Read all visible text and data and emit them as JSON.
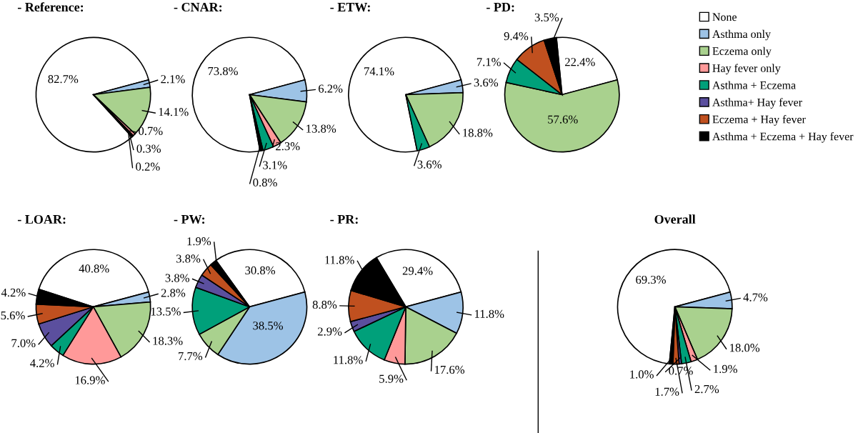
{
  "chart_data": [
    {
      "type": "pie",
      "title": "- Reference:",
      "categories": [
        "None",
        "Asthma only",
        "Eczema only",
        "Hay fever only",
        "Asthma + Eczema",
        "Asthma+ Hay fever",
        "Eczema + Hay fever",
        "Asthma + Eczema + Hay fever"
      ],
      "values": [
        82.7,
        2.1,
        14.1,
        0.7,
        0.3,
        null,
        null,
        0.2
      ],
      "value_labels": [
        "82.7%",
        "2.1%",
        "14.1%",
        "0.7%",
        "0.3%",
        null,
        null,
        "0.2%"
      ],
      "colors": [
        "#ffffff",
        "#9dc3e6",
        "#a9d18e",
        "#ff9999",
        "#00a07a",
        "#5b4f9e",
        "#c0501f",
        "#000000"
      ],
      "legend": "top right"
    },
    {
      "type": "pie",
      "title": "- CNAR:",
      "categories": [
        null,
        null,
        null,
        null,
        null,
        null
      ],
      "values": [
        73.8,
        6.2,
        13.8,
        2.3,
        3.1,
        0.8
      ],
      "value_labels": [
        "73.8%",
        "6.2%",
        "13.8%",
        "2.3%",
        "3.1%",
        "0.8%"
      ],
      "colors": [
        "#ffffff",
        "#9dc3e6",
        "#a9d18e",
        "#ff9999",
        "#00a07a",
        "#000000"
      ]
    },
    {
      "type": "pie",
      "title": "- ETW:",
      "categories": [
        null,
        null,
        null,
        null
      ],
      "values": [
        74.1,
        3.6,
        18.8,
        3.6
      ],
      "value_labels": [
        "74.1%",
        "3.6%",
        "18.8%",
        "3.6%"
      ],
      "colors": [
        "#ffffff",
        "#9dc3e6",
        "#a9d18e",
        "#00a07a"
      ]
    },
    {
      "type": "pie",
      "title": "- PD:",
      "categories": [
        null,
        null,
        null,
        null,
        null
      ],
      "values": [
        22.4,
        57.6,
        7.1,
        9.4,
        3.5
      ],
      "value_labels": [
        "22.4%",
        "57.6%",
        "7.1%",
        "9.4%",
        "3.5%"
      ],
      "colors": [
        "#ffffff",
        "#a9d18e",
        "#00a07a",
        "#c0501f",
        "#000000"
      ]
    },
    {
      "type": "pie",
      "title": "- LOAR:",
      "categories": [
        null,
        null,
        null,
        null,
        null,
        null,
        null,
        null
      ],
      "values": [
        40.8,
        2.8,
        18.3,
        16.9,
        4.2,
        7.0,
        5.6,
        4.2
      ],
      "value_labels": [
        "40.8%",
        "2.8%",
        "18.3%",
        "16.9%",
        "4.2%",
        "7.0%",
        "5.6%",
        "4.2%"
      ],
      "colors": [
        "#ffffff",
        "#9dc3e6",
        "#a9d18e",
        "#ff9999",
        "#00a07a",
        "#5b4f9e",
        "#c0501f",
        "#000000"
      ]
    },
    {
      "type": "pie",
      "title": "- PW:",
      "categories": [
        null,
        null,
        null,
        null,
        null,
        null,
        null
      ],
      "values": [
        30.8,
        38.5,
        7.7,
        13.5,
        3.8,
        3.8,
        1.9
      ],
      "value_labels": [
        "30.8%",
        "38.5%",
        "7.7%",
        "13.5%",
        "3.8%",
        "3.8%",
        "1.9%"
      ],
      "colors": [
        "#ffffff",
        "#9dc3e6",
        "#a9d18e",
        "#00a07a",
        "#5b4f9e",
        "#c0501f",
        "#000000"
      ]
    },
    {
      "type": "pie",
      "title": "- PR:",
      "categories": [
        null,
        null,
        null,
        null,
        null,
        null,
        null,
        null
      ],
      "values": [
        29.4,
        11.8,
        17.6,
        5.9,
        11.8,
        2.9,
        8.8,
        11.8
      ],
      "value_labels": [
        "29.4%",
        "11.8%",
        "17.6%",
        "5.9%",
        "11.8%",
        "2.9%",
        "8.8%",
        "11.8%"
      ],
      "colors": [
        "#ffffff",
        "#9dc3e6",
        "#a9d18e",
        "#ff9999",
        "#00a07a",
        "#5b4f9e",
        "#c0501f",
        "#000000"
      ]
    },
    {
      "type": "pie",
      "title": "Overall",
      "categories": [
        null,
        null,
        null,
        null,
        null,
        null,
        null,
        null
      ],
      "values": [
        69.3,
        4.7,
        18.0,
        1.9,
        2.7,
        0.7,
        1.7,
        1.0
      ],
      "value_labels": [
        "69.3%",
        "4.7%",
        "18.0%",
        "1.9%",
        "2.7%",
        "0.7%",
        "1.7%",
        "1.0%"
      ],
      "colors": [
        "#ffffff",
        "#9dc3e6",
        "#a9d18e",
        "#ff9999",
        "#00a07a",
        "#5b4f9e",
        "#c0501f",
        "#000000"
      ]
    }
  ]
}
